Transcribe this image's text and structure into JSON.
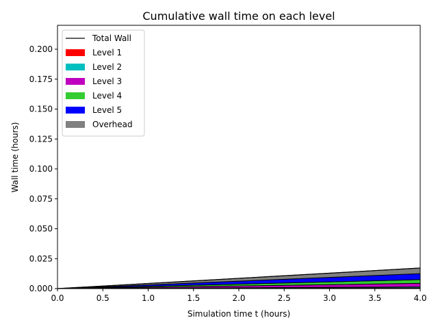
{
  "chart_data": {
    "type": "area",
    "stacked": true,
    "title": "Cumulative wall time on each level",
    "xlabel": "Simulation time t (hours)",
    "ylabel": "Wall time (hours)",
    "xlim": [
      0,
      4
    ],
    "ylim": [
      0,
      0.22
    ],
    "x_ticks": [
      "0.0",
      "0.5",
      "1.0",
      "1.5",
      "2.0",
      "2.5",
      "3.0",
      "3.5",
      "4.0"
    ],
    "y_ticks": [
      "0.000",
      "0.025",
      "0.050",
      "0.075",
      "0.100",
      "0.125",
      "0.150",
      "0.175",
      "0.200"
    ],
    "grid": false,
    "legend_position": "upper-left",
    "x": [
      0,
      4
    ],
    "series": [
      {
        "name": "Level 1",
        "color": "#ff0000",
        "values": [
          0,
          0.0006
        ]
      },
      {
        "name": "Level 2",
        "color": "#00bfbf",
        "values": [
          0,
          0.0008
        ]
      },
      {
        "name": "Level 3",
        "color": "#bf00bf",
        "values": [
          0,
          0.003
        ]
      },
      {
        "name": "Level 4",
        "color": "#33cc33",
        "values": [
          0,
          0.0031
        ]
      },
      {
        "name": "Level 5",
        "color": "#0000ff",
        "values": [
          0,
          0.005
        ]
      },
      {
        "name": "Overhead",
        "color": "#808080",
        "values": [
          0,
          0.0047
        ]
      }
    ],
    "total_line": {
      "name": "Total Wall",
      "color": "#000000",
      "values": [
        0,
        0.0172
      ]
    }
  }
}
